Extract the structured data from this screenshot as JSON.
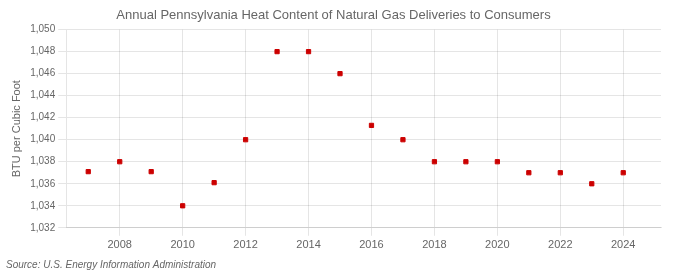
{
  "chart_data": {
    "type": "scatter",
    "title": "Annual Pennsylvania Heat Content of Natural Gas Deliveries to Consumers",
    "ylabel": "BTU per Cubic Foot",
    "annotation": "Source: U.S. Energy Information Administration",
    "x": [
      2007,
      2008,
      2009,
      2010,
      2011,
      2012,
      2013,
      2014,
      2015,
      2016,
      2017,
      2018,
      2019,
      2020,
      2021,
      2022,
      2023,
      2024
    ],
    "values": [
      1037.1,
      1038.0,
      1037.1,
      1034.0,
      1036.1,
      1040.0,
      1048.0,
      1048.0,
      1046.0,
      1041.3,
      1040.0,
      1038.0,
      1038.0,
      1038.0,
      1037.0,
      1037.0,
      1036.0,
      1037.0
    ],
    "color": "#cc0000",
    "marker": "square",
    "xlim": [
      2006.3,
      2025.2
    ],
    "xticks": [
      2008,
      2010,
      2012,
      2014,
      2016,
      2018,
      2020,
      2022,
      2024
    ],
    "ylim": [
      1032,
      1050
    ],
    "yticks": [
      {
        "value": 1032,
        "label": "1,032"
      },
      {
        "value": 1034,
        "label": "1,034"
      },
      {
        "value": 1036,
        "label": "1,036"
      },
      {
        "value": 1038,
        "label": "1,038"
      },
      {
        "value": 1040,
        "label": "1,040"
      },
      {
        "value": 1042,
        "label": "1,042"
      },
      {
        "value": 1044,
        "label": "1,044"
      },
      {
        "value": 1046,
        "label": "1,046"
      },
      {
        "value": 1048,
        "label": "1,048"
      },
      {
        "value": 1050,
        "label": "1,050"
      }
    ],
    "grid": true
  }
}
